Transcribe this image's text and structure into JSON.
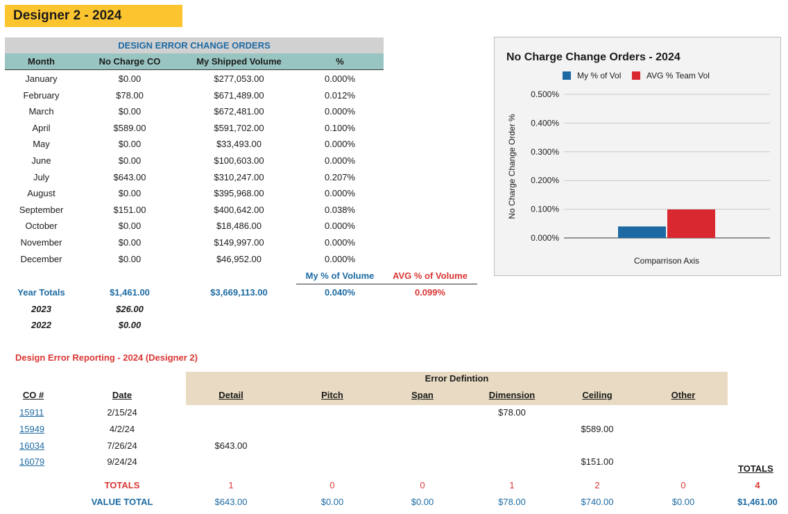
{
  "title": "Designer 2 - 2024",
  "summary": {
    "banner": "DESIGN ERROR CHANGE ORDERS",
    "headers": [
      "Month",
      "No Charge CO",
      "My Shipped Volume",
      "%"
    ],
    "rows": [
      {
        "month": "January",
        "co": "$0.00",
        "vol": "$277,053.00",
        "pct": "0.000%"
      },
      {
        "month": "February",
        "co": "$78.00",
        "vol": "$671,489.00",
        "pct": "0.012%"
      },
      {
        "month": "March",
        "co": "$0.00",
        "vol": "$672,481.00",
        "pct": "0.000%"
      },
      {
        "month": "April",
        "co": "$589.00",
        "vol": "$591,702.00",
        "pct": "0.100%"
      },
      {
        "month": "May",
        "co": "$0.00",
        "vol": "$33,493.00",
        "pct": "0.000%"
      },
      {
        "month": "June",
        "co": "$0.00",
        "vol": "$100,603.00",
        "pct": "0.000%"
      },
      {
        "month": "July",
        "co": "$643.00",
        "vol": "$310,247.00",
        "pct": "0.207%"
      },
      {
        "month": "August",
        "co": "$0.00",
        "vol": "$395,968.00",
        "pct": "0.000%"
      },
      {
        "month": "September",
        "co": "$151.00",
        "vol": "$400,642.00",
        "pct": "0.038%"
      },
      {
        "month": "October",
        "co": "$0.00",
        "vol": "$18,486.00",
        "pct": "0.000%"
      },
      {
        "month": "November",
        "co": "$0.00",
        "vol": "$149,997.00",
        "pct": "0.000%"
      },
      {
        "month": "December",
        "co": "$0.00",
        "vol": "$46,952.00",
        "pct": "0.000%"
      }
    ],
    "my_pct_label": "My % of Volume",
    "avg_pct_label": "AVG % of Volume",
    "year_totals": {
      "label": "Year Totals",
      "co": "$1,461.00",
      "vol": "$3,669,113.00",
      "my_pct": "0.040%",
      "avg_pct": "0.099%"
    },
    "prior": [
      {
        "year": "2023",
        "co": "$26.00"
      },
      {
        "year": "2022",
        "co": "$0.00"
      }
    ]
  },
  "chart_data": {
    "type": "bar",
    "title": "No Charge Change Orders - 2024",
    "xlabel": "Comparrison Axis",
    "ylabel": "No Charge Change Order %",
    "categories": [
      "Comparrison Axis"
    ],
    "series": [
      {
        "name": "My % of Vol",
        "values": [
          0.04
        ],
        "color": "#1c69a4"
      },
      {
        "name": "AVG % Team Vol",
        "values": [
          0.099
        ],
        "color": "#d9282f"
      }
    ],
    "ylim": [
      0,
      0.5
    ],
    "yticks": [
      "0.000%",
      "0.100%",
      "0.200%",
      "0.300%",
      "0.400%",
      "0.500%"
    ],
    "legend": "top",
    "grid": true
  },
  "errors": {
    "title": "Design Error Reporting - 2024 (Designer 2)",
    "group_header": "Error Defintion",
    "co_header": "CO #",
    "date_header": "Date",
    "columns": [
      "Detail",
      "Pitch",
      "Span",
      "Dimension",
      "Ceiling",
      "Other"
    ],
    "rows": [
      {
        "co": "15911",
        "date": "2/15/24",
        "detail": "",
        "pitch": "",
        "span": "",
        "dimension": "$78.00",
        "ceiling": "",
        "other": ""
      },
      {
        "co": "15949",
        "date": "4/2/24",
        "detail": "",
        "pitch": "",
        "span": "",
        "dimension": "",
        "ceiling": "$589.00",
        "other": ""
      },
      {
        "co": "16034",
        "date": "7/26/24",
        "detail": "$643.00",
        "pitch": "",
        "span": "",
        "dimension": "",
        "ceiling": "",
        "other": ""
      },
      {
        "co": "16079",
        "date": "9/24/24",
        "detail": "",
        "pitch": "",
        "span": "",
        "dimension": "",
        "ceiling": "$151.00",
        "other": ""
      }
    ],
    "totals_header": "TOTALS",
    "totals": {
      "label": "TOTALS",
      "values": [
        "1",
        "0",
        "0",
        "1",
        "2",
        "0"
      ],
      "grand": "4"
    },
    "value_total": {
      "label": "VALUE TOTAL",
      "values": [
        "$643.00",
        "$0.00",
        "$0.00",
        "$78.00",
        "$740.00",
        "$0.00"
      ],
      "grand": "$1,461.00"
    }
  }
}
